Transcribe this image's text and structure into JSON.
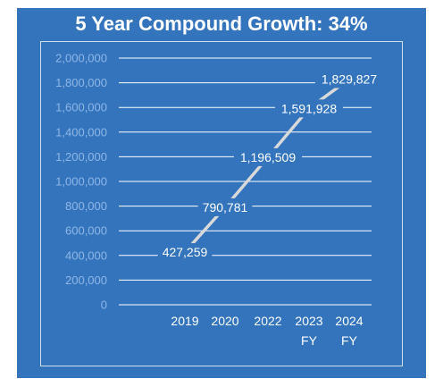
{
  "chart_data": {
    "type": "line",
    "title": "5 Year Compound Growth: 34%",
    "categories": [
      "2019",
      "2020",
      "2022",
      "2023 FY",
      "2024 FY"
    ],
    "category_lines": [
      [
        "2019"
      ],
      [
        "2020"
      ],
      [
        "2022"
      ],
      [
        "2023",
        "FY"
      ],
      [
        "2024",
        "FY"
      ]
    ],
    "y_tick_labels": [
      "0",
      "200,000",
      "400,000",
      "600,000",
      "800,000",
      "1,000,000",
      "1,200,000",
      "1,400,000",
      "1,600,000",
      "1,800,000",
      "2,000,000"
    ],
    "ylim": [
      0,
      2000000
    ],
    "grid": true,
    "series": [
      {
        "values": [
          427259,
          790781,
          1196509,
          1591928,
          1829827
        ],
        "labels": [
          "427,259",
          "790,781",
          "1,196,509",
          "1,591,928",
          "1,829,827"
        ],
        "color": "#d9d9d9"
      }
    ]
  }
}
